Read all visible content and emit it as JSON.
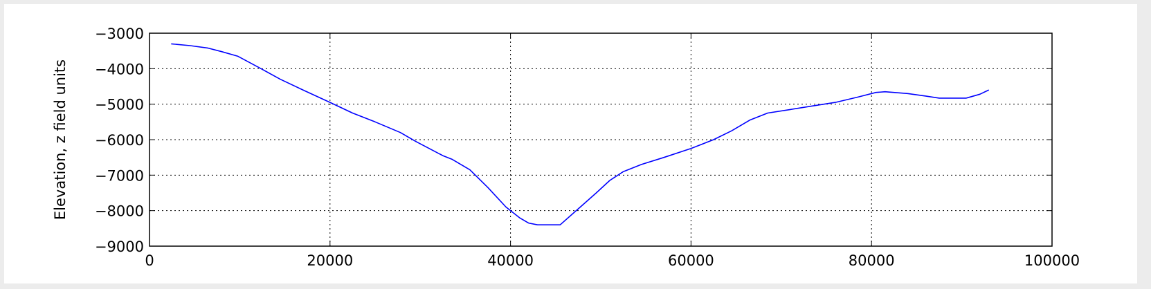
{
  "chart_data": {
    "type": "line",
    "title": "",
    "xlabel": "",
    "ylabel": "Elevation, z field units",
    "xlim": [
      0,
      100000
    ],
    "ylim": [
      -9000,
      -3000
    ],
    "grid": true,
    "xticks": [
      0,
      20000,
      40000,
      60000,
      80000,
      100000
    ],
    "xtick_labels": [
      "0",
      "20000",
      "40000",
      "60000",
      "80000",
      "100000"
    ],
    "yticks": [
      -3000,
      -4000,
      -5000,
      -6000,
      -7000,
      -8000,
      -9000
    ],
    "ytick_labels": [
      "−3000",
      "−4000",
      "−5000",
      "−6000",
      "−7000",
      "−8000",
      "−9000"
    ],
    "series": [
      {
        "color": "#0000ff",
        "x": [
          2400,
          4500,
          6500,
          8000,
          9800,
          12000,
          14500,
          17000,
          20000,
          22500,
          25000,
          27800,
          29500,
          31000,
          32500,
          33500,
          35500,
          37500,
          39500,
          41000,
          42000,
          43000,
          44000,
          45500,
          47500,
          49500,
          51000,
          52500,
          54500,
          57000,
          60000,
          62500,
          64500,
          66500,
          68500,
          71000,
          73500,
          76000,
          78500,
          80500,
          81500,
          84000,
          86000,
          87500,
          89000,
          90500,
          92000,
          93000
        ],
        "y": [
          -3300,
          -3350,
          -3420,
          -3520,
          -3650,
          -3950,
          -4300,
          -4600,
          -4950,
          -5250,
          -5500,
          -5800,
          -6050,
          -6250,
          -6450,
          -6550,
          -6850,
          -7350,
          -7900,
          -8200,
          -8350,
          -8400,
          -8400,
          -8400,
          -7950,
          -7500,
          -7150,
          -6900,
          -6700,
          -6500,
          -6250,
          -6000,
          -5750,
          -5450,
          -5250,
          -5150,
          -5050,
          -4950,
          -4800,
          -4670,
          -4650,
          -4700,
          -4770,
          -4830,
          -4830,
          -4830,
          -4720,
          -4600
        ]
      }
    ]
  }
}
